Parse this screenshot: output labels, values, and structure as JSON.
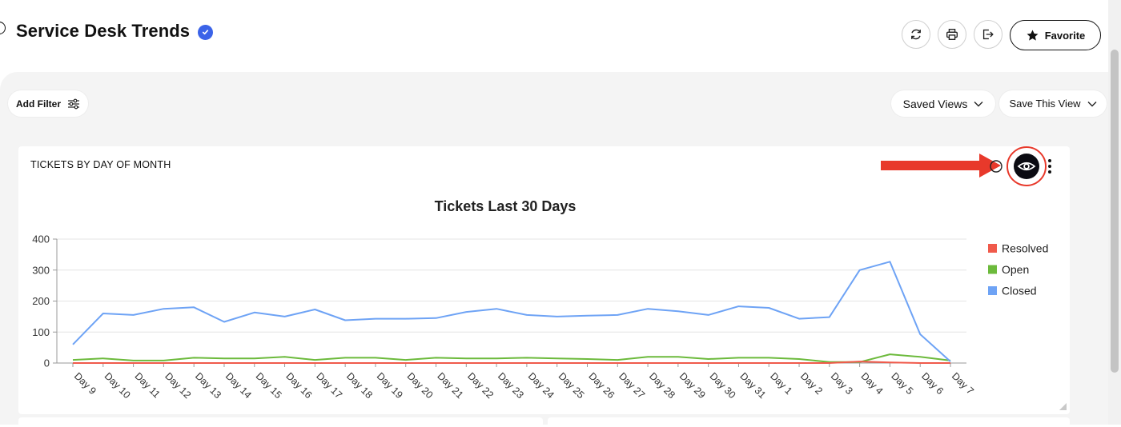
{
  "header": {
    "title": "Service Desk Trends",
    "favorite_label": "Favorite"
  },
  "toolbar": {
    "add_filter_label": "Add Filter",
    "saved_views_label": "Saved Views",
    "save_view_label": "Save This View"
  },
  "widget": {
    "title": "TICKETS BY DAY OF MONTH"
  },
  "icons": {
    "back": "back-circle-icon",
    "verified": "verified-badge-icon",
    "refresh": "refresh-icon",
    "print": "print-icon",
    "export": "export-icon",
    "favorite": "star-icon",
    "filter": "sliders-icon",
    "view": "eye-icon",
    "more": "more-vertical-icon"
  },
  "colors": {
    "resolved": "#f05a4b",
    "open": "#6cba3c",
    "closed": "#6ea3f5",
    "accent": "#3b63e8",
    "highlight": "#e8392b"
  },
  "chart_data": {
    "type": "line",
    "title": "Tickets Last 30 Days",
    "categories": [
      "Day 9",
      "Day 10",
      "Day 11",
      "Day 12",
      "Day 13",
      "Day 14",
      "Day 15",
      "Day 16",
      "Day 17",
      "Day 18",
      "Day 19",
      "Day 20",
      "Day 21",
      "Day 22",
      "Day 23",
      "Day 24",
      "Day 25",
      "Day 26",
      "Day 27",
      "Day 28",
      "Day 29",
      "Day 30",
      "Day 31",
      "Day 1",
      "Day 2",
      "Day 3",
      "Day 4",
      "Day 5",
      "Day 6",
      "Day 7"
    ],
    "series": [
      {
        "name": "Resolved",
        "color": "#f05a4b",
        "values": [
          0,
          0,
          0,
          0,
          0,
          0,
          0,
          0,
          0,
          0,
          0,
          0,
          0,
          0,
          0,
          0,
          0,
          0,
          0,
          0,
          0,
          0,
          0,
          0,
          0,
          0,
          5,
          2,
          0,
          0
        ]
      },
      {
        "name": "Open",
        "color": "#6cba3c",
        "values": [
          10,
          15,
          8,
          8,
          17,
          15,
          15,
          20,
          10,
          17,
          17,
          10,
          17,
          15,
          15,
          17,
          15,
          13,
          10,
          20,
          20,
          13,
          17,
          17,
          13,
          3,
          3,
          28,
          20,
          8
        ]
      },
      {
        "name": "Closed",
        "color": "#6ea3f5",
        "values": [
          60,
          160,
          155,
          175,
          180,
          133,
          163,
          150,
          173,
          138,
          143,
          143,
          145,
          165,
          175,
          155,
          150,
          153,
          155,
          175,
          167,
          155,
          183,
          178,
          143,
          148,
          300,
          327,
          93,
          5
        ]
      }
    ],
    "ylim": [
      0,
      400
    ],
    "yticks": [
      0,
      100,
      200,
      300,
      400
    ],
    "legend_position": "right",
    "grid": true
  }
}
